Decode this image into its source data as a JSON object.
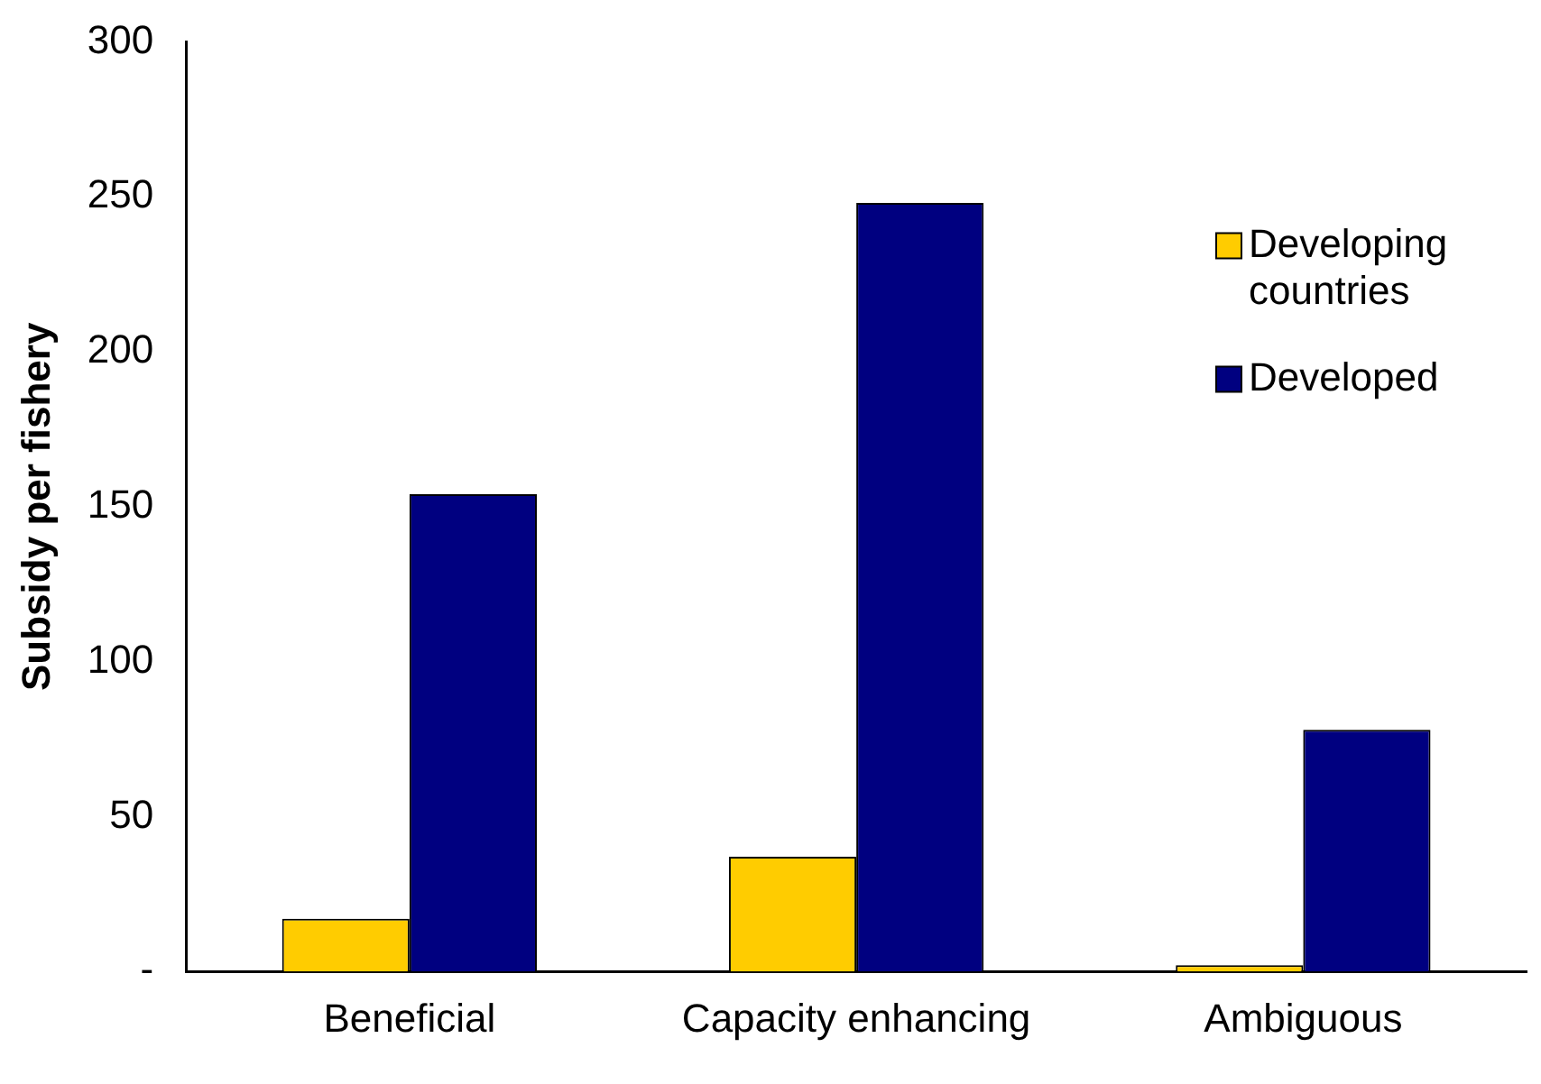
{
  "chart_data": {
    "type": "bar",
    "ylabel": "Subsidy per fishery",
    "categories": [
      "Beneficial",
      "Capacity enhancing",
      "Ambiguous"
    ],
    "series": [
      {
        "name": "Developing countries",
        "color": "#ffcc00",
        "values": [
          17,
          37,
          2
        ]
      },
      {
        "name": "Developed",
        "color": "#000080",
        "values": [
          154,
          248,
          78
        ]
      }
    ],
    "ylim": [
      0,
      300
    ],
    "yticks": [
      {
        "value": 0,
        "label": "-"
      },
      50,
      100,
      150,
      200,
      250,
      300
    ],
    "grid": false,
    "legend": "right"
  }
}
